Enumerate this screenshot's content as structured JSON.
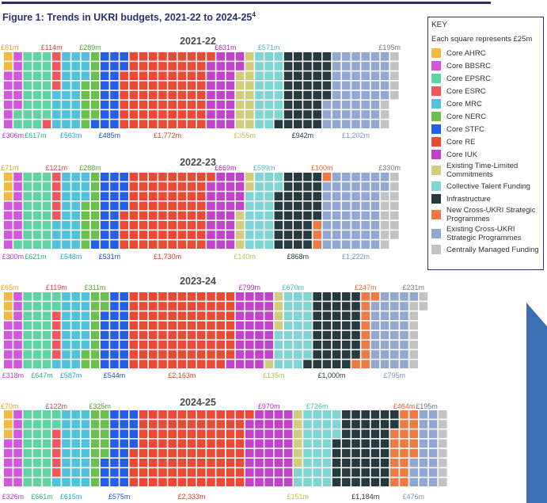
{
  "figure": {
    "title": "Figure 1: Trends in UKRI budgets, 2021-22 to 2024-25",
    "footnote_ref": "4"
  },
  "key": {
    "title": "KEY",
    "subtitle": "Each square represents £25m"
  },
  "chart_data": {
    "type": "unit-waffle",
    "unit_value_m": 25,
    "unit_label": "Each square represents £25m",
    "currency": "£",
    "categories": [
      {
        "id": "ahrc",
        "name": "Core AHRC",
        "color": "#f4b93e"
      },
      {
        "id": "bbsrc",
        "name": "Core BBSRC",
        "color": "#d455df"
      },
      {
        "id": "epsrc",
        "name": "Core EPSRC",
        "color": "#5fd3a1"
      },
      {
        "id": "esrc",
        "name": "Core ESRC",
        "color": "#f0575b"
      },
      {
        "id": "mrc",
        "name": "Core MRC",
        "color": "#51c2dc"
      },
      {
        "id": "nerc",
        "name": "Core NERC",
        "color": "#6cbf4c"
      },
      {
        "id": "stfc",
        "name": "Core STFC",
        "color": "#245ee8"
      },
      {
        "id": "re",
        "name": "Core RE",
        "color": "#ea4a35"
      },
      {
        "id": "iuk",
        "name": "Core IUK",
        "color": "#c043c9"
      },
      {
        "id": "tlc",
        "name": "Existing Time-Limited Commitments",
        "color": "#d2cd7c"
      },
      {
        "id": "ctf",
        "name": "Collective Talent Funding",
        "color": "#7fd5d3"
      },
      {
        "id": "infra",
        "name": "Infrastructure",
        "color": "#26393e"
      },
      {
        "id": "newsp",
        "name": "New Cross-UKRI Strategic Programmes",
        "color": "#f07a44"
      },
      {
        "id": "exsp",
        "name": "Existing Cross-UKRI Strategic Programmes",
        "color": "#90a8d2"
      },
      {
        "id": "cmf",
        "name": "Centrally Managed Funding",
        "color": "#c2c2c2"
      }
    ],
    "years": [
      {
        "year": "2021-22",
        "values": {
          "ahrc": 61,
          "bbsrc": 306,
          "epsrc": 617,
          "esrc": 114,
          "mrc": 563,
          "nerc": 289,
          "stfc": 485,
          "re": 1772,
          "iuk": 631,
          "tlc": 355,
          "ctf": 571,
          "infra": 942,
          "newsp": 0,
          "exsp": 1202,
          "cmf": 195
        }
      },
      {
        "year": "2022-23",
        "values": {
          "ahrc": 71,
          "bbsrc": 300,
          "epsrc": 621,
          "esrc": 121,
          "mrc": 548,
          "nerc": 288,
          "stfc": 531,
          "re": 1730,
          "iuk": 669,
          "tlc": 140,
          "ctf": 599,
          "infra": 868,
          "newsp": 100,
          "exsp": 1222,
          "cmf": 330
        }
      },
      {
        "year": "2023-24",
        "values": {
          "ahrc": 65,
          "bbsrc": 318,
          "epsrc": 647,
          "esrc": 119,
          "mrc": 587,
          "nerc": 311,
          "stfc": 544,
          "re": 2163,
          "iuk": 799,
          "tlc": 135,
          "ctf": 670,
          "infra": 1000,
          "newsp": 247,
          "exsp": 795,
          "cmf": 231
        }
      },
      {
        "year": "2024-25",
        "values": {
          "ahrc": 70,
          "bbsrc": 326,
          "epsrc": 661,
          "esrc": 122,
          "mrc": 615,
          "nerc": 325,
          "stfc": 575,
          "re": 2333,
          "iuk": 970,
          "tlc": 151,
          "ctf": 726,
          "infra": 1184,
          "newsp": 464,
          "exsp": 476,
          "cmf": 195
        }
      }
    ],
    "labels": [
      {
        "year": "2021-22",
        "top": [
          [
            "ahrc",
            "£61m"
          ],
          [
            "esrc",
            "£114m"
          ],
          [
            "nerc",
            "£289m"
          ],
          [
            "iuk",
            "£631m"
          ],
          [
            "ctf",
            "£571m"
          ],
          [
            "cmf",
            "£195m"
          ]
        ],
        "bottom": [
          [
            "bbsrc",
            "£306m"
          ],
          [
            "epsrc",
            "£617m"
          ],
          [
            "mrc",
            "£563m"
          ],
          [
            "stfc",
            "£485m"
          ],
          [
            "re",
            "£1,772m"
          ],
          [
            "tlc",
            "£355m"
          ],
          [
            "infra",
            "£942m"
          ],
          [
            "exsp",
            "£1,202m"
          ]
        ]
      },
      {
        "year": "2022-23",
        "top": [
          [
            "ahrc",
            "£71m"
          ],
          [
            "esrc",
            "£121m"
          ],
          [
            "nerc",
            "£288m"
          ],
          [
            "iuk",
            "£669m"
          ],
          [
            "ctf",
            "£599m"
          ],
          [
            "newsp",
            "£100m"
          ],
          [
            "cmf",
            "£330m"
          ]
        ],
        "bottom": [
          [
            "bbsrc",
            "£300m"
          ],
          [
            "epsrc",
            "£621m"
          ],
          [
            "mrc",
            "£548m"
          ],
          [
            "stfc",
            "£531m"
          ],
          [
            "re",
            "£1,730m"
          ],
          [
            "tlc",
            "£140m"
          ],
          [
            "infra",
            "£868m"
          ],
          [
            "exsp",
            "£1,222m"
          ]
        ]
      },
      {
        "year": "2023-24",
        "top": [
          [
            "ahrc",
            "£65m"
          ],
          [
            "esrc",
            "£119m"
          ],
          [
            "nerc",
            "£311m"
          ],
          [
            "iuk",
            "£799m"
          ],
          [
            "ctf",
            "£670m"
          ],
          [
            "newsp",
            "£247m"
          ],
          [
            "cmf",
            "£231m"
          ]
        ],
        "bottom": [
          [
            "bbsrc",
            "£318m"
          ],
          [
            "epsrc",
            "£647m"
          ],
          [
            "mrc",
            "£587m"
          ],
          [
            "stfc",
            "£544m"
          ],
          [
            "re",
            "£2,163m"
          ],
          [
            "tlc",
            "£135m"
          ],
          [
            "infra",
            "£1,000m"
          ],
          [
            "exsp",
            "£795m"
          ]
        ]
      },
      {
        "year": "2024-25",
        "top": [
          [
            "ahrc",
            "£70m"
          ],
          [
            "esrc",
            "£122m"
          ],
          [
            "nerc",
            "£325m"
          ],
          [
            "iuk",
            "£970m"
          ],
          [
            "ctf",
            "£726m"
          ],
          [
            "newsp",
            "£464m"
          ],
          [
            "cmf",
            "£195m"
          ]
        ],
        "bottom": [
          [
            "bbsrc",
            "£326m"
          ],
          [
            "epsrc",
            "£661m"
          ],
          [
            "mrc",
            "£615m"
          ],
          [
            "stfc",
            "£575m"
          ],
          [
            "re",
            "£2,333m"
          ],
          [
            "tlc",
            "£151m"
          ],
          [
            "infra",
            "£1,184m"
          ],
          [
            "exsp",
            "£476m"
          ]
        ]
      }
    ],
    "label_colors": {
      "ahrc": "#e0a020",
      "bbsrc": "#c03acb",
      "epsrc": "#2db07e",
      "esrc": "#e04045",
      "mrc": "#2aa6c4",
      "nerc": "#4fa631",
      "stfc": "#1d4fd0",
      "re": "#dd3b25",
      "iuk": "#b232bb",
      "tlc": "#c2bc55",
      "ctf": "#48b9b7",
      "infra": "#26393e",
      "newsp": "#e8652a",
      "exsp": "#7d95c2",
      "cmf": "#777777"
    }
  }
}
